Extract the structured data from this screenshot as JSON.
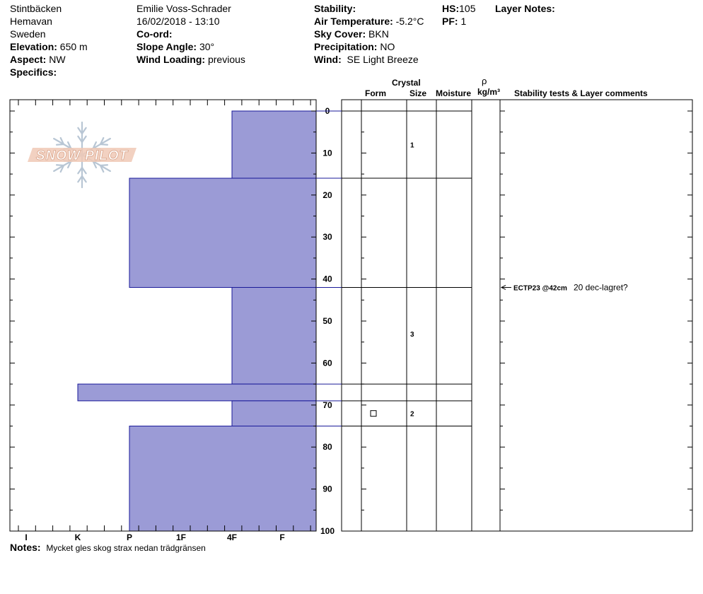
{
  "header": {
    "location": "Stintbäcken",
    "region": "Hemavan",
    "country": "Sweden",
    "elevation_label": "Elevation:",
    "elevation": "650 m",
    "aspect_label": "Aspect:",
    "aspect": "NW",
    "specifics_label": "Specifics:",
    "observer": "Emilie Voss-Schrader",
    "datetime": "16/02/2018 - 13:10",
    "coord_label": "Co-ord:",
    "slope_label": "Slope Angle:",
    "slope": "30°",
    "wind_loading_label": "Wind Loading:",
    "wind_loading": "previous",
    "stability_label": "Stability:",
    "air_temp_label": "Air Temperature:",
    "air_temp": "-5.2°C",
    "sky_label": "Sky Cover:",
    "sky": "BKN",
    "precip_label": "Precipitation:",
    "precip": "NO",
    "wind_label": "Wind:",
    "wind": "SE  Light Breeze",
    "hs_label": "HS:",
    "hs": "105",
    "pf_label": "PF:",
    "pf": "1",
    "layer_notes_label": "Layer Notes:"
  },
  "columns": {
    "crystal": "Crystal",
    "form": "Form",
    "size": "Size",
    "moisture": "Moisture",
    "rho": "ρ",
    "density_unit": "kg/m³",
    "stability_tests": "Stability tests & Layer comments"
  },
  "logo_text": "SNOW PILOT",
  "notes_label": "Notes:",
  "notes": "Mycket gles skog strax nedan trädgränsen",
  "chart_data": {
    "type": "bar",
    "hardness_scale": [
      "I",
      "K",
      "P",
      "1F",
      "4F",
      "F"
    ],
    "depth_ticks": [
      0,
      10,
      20,
      30,
      40,
      50,
      60,
      70,
      80,
      90,
      100
    ],
    "ylim": [
      0,
      100
    ],
    "colors": {
      "fill": "#9b9bd6",
      "stroke": "#1a1a99"
    },
    "hardness_profile": [
      {
        "top": 0,
        "bottom": 16,
        "hardness": "4F"
      },
      {
        "top": 16,
        "bottom": 42,
        "hardness": "P"
      },
      {
        "top": 42,
        "bottom": 65,
        "hardness": "4F"
      },
      {
        "top": 65,
        "bottom": 69,
        "hardness": "K"
      },
      {
        "top": 69,
        "bottom": 75,
        "hardness": "4F"
      },
      {
        "top": 75,
        "bottom": 100,
        "hardness": "P"
      }
    ],
    "layer_boundaries": [
      0,
      16,
      42,
      65,
      69,
      75
    ],
    "crystal_layers": [
      {
        "depth": 8,
        "form": "",
        "size": "1"
      },
      {
        "depth": 53,
        "form": "",
        "size": "3"
      },
      {
        "depth": 72,
        "form": "square",
        "size": "2"
      }
    ],
    "stability_tests": [
      {
        "depth": 42,
        "test": "ECTP23 @42cm",
        "comment": "20 dec-lagret?"
      }
    ]
  }
}
